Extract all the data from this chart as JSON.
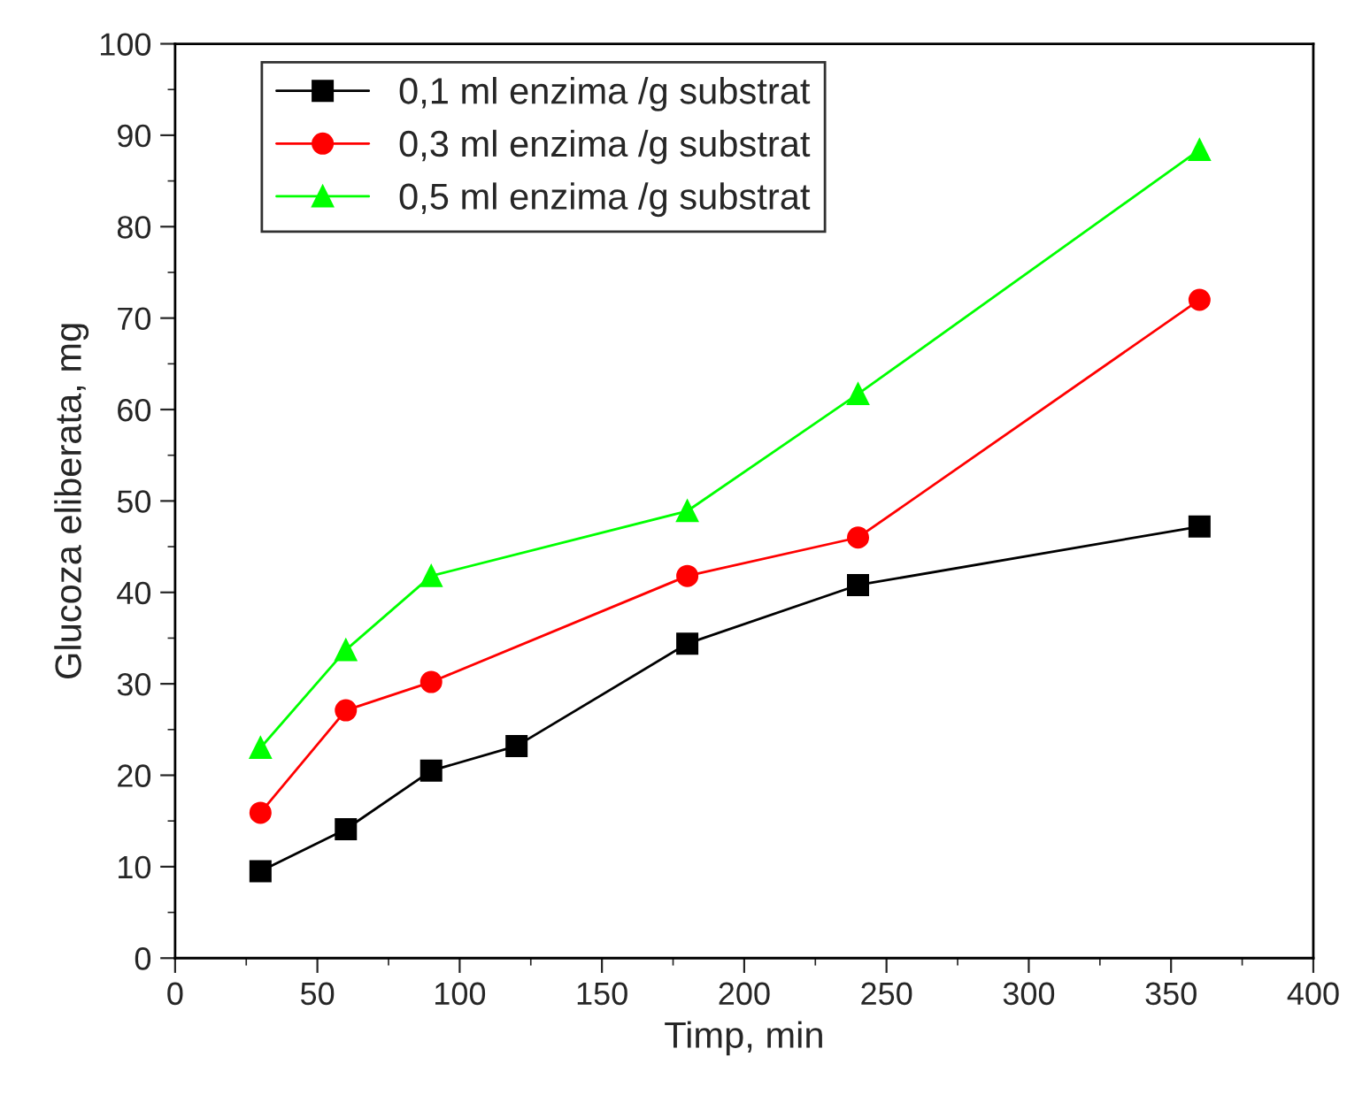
{
  "chart_data": {
    "type": "line",
    "xlabel": "Timp, min",
    "ylabel": "Glucoza eliberata, mg",
    "xlim": [
      0,
      400
    ],
    "xticks": [
      0,
      50,
      100,
      150,
      200,
      250,
      300,
      350,
      400
    ],
    "ylim": [
      0,
      100
    ],
    "yticks": [
      0,
      10,
      20,
      30,
      40,
      50,
      60,
      70,
      80,
      90,
      100
    ],
    "legend": "top left",
    "grid": false,
    "line_style": "solid",
    "series": [
      {
        "name": "0,1 ml enzima /g substrat",
        "color": "#000000",
        "marker": "square",
        "x": [
          30,
          60,
          90,
          120,
          180,
          240,
          360
        ],
        "values": [
          9.5,
          14.1,
          20.5,
          23.2,
          34.4,
          40.8,
          47.2
        ]
      },
      {
        "name": "0,3 ml enzima /g substrat",
        "color": "#ff0000",
        "marker": "circle",
        "x": [
          30,
          60,
          90,
          180,
          240,
          360
        ],
        "values": [
          15.9,
          27.1,
          30.2,
          41.8,
          46.0,
          72.0
        ]
      },
      {
        "name": "0,5 ml enzima /g substrat",
        "color": "#00ff00",
        "marker": "triangle",
        "x": [
          30,
          60,
          90,
          180,
          240,
          360
        ],
        "values": [
          23.0,
          33.7,
          41.8,
          48.9,
          61.7,
          88.4
        ]
      }
    ]
  }
}
